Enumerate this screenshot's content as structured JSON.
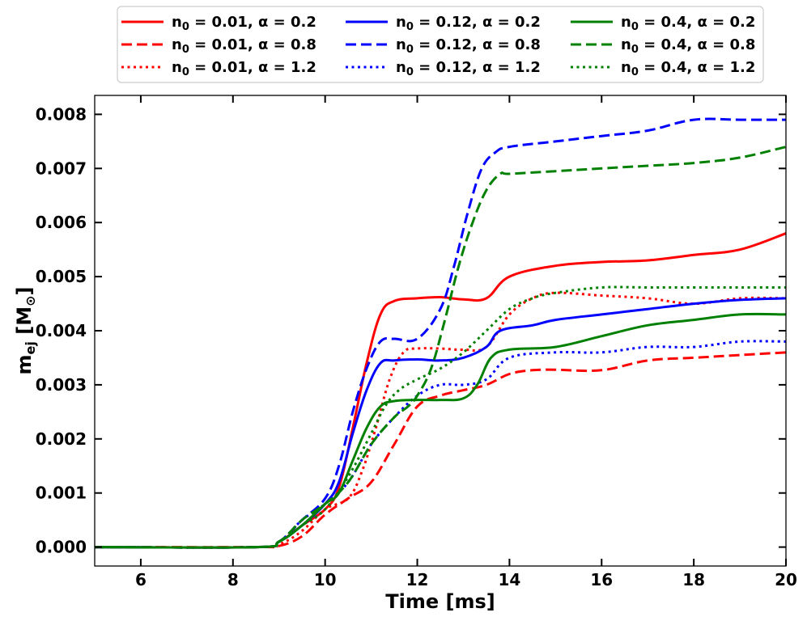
{
  "chart_data": {
    "type": "line",
    "title": "",
    "xlabel": "Time [ms]",
    "ylabel_main": "m",
    "ylabel_sub": "ej",
    "ylabel_unit": "[M",
    "ylabel_unit_sub": "⊙",
    "ylabel_close": "]",
    "xlim": [
      5,
      20
    ],
    "ylim": [
      -0.00035,
      0.00835
    ],
    "xticks": [
      6,
      8,
      10,
      12,
      14,
      16,
      18,
      20
    ],
    "yticks": [
      0,
      0.001,
      0.002,
      0.003,
      0.004,
      0.005,
      0.006,
      0.007,
      0.008
    ],
    "xtick_labels": [
      "6",
      "8",
      "10",
      "12",
      "14",
      "16",
      "18",
      "20"
    ],
    "ytick_labels": [
      "0.000",
      "0.001",
      "0.002",
      "0.003",
      "0.004",
      "0.005",
      "0.006",
      "0.007",
      "0.008"
    ],
    "legend_position": "top-center",
    "series": [
      {
        "name": "n0 = 0.01, α = 0.2",
        "n0": "0.01",
        "alpha": "0.2",
        "color": "#ff0000",
        "style": "solid",
        "x": [
          5,
          8.5,
          9.0,
          9.5,
          10.0,
          10.3,
          10.6,
          10.9,
          11.2,
          11.5,
          12.0,
          12.5,
          13.0,
          13.5,
          14.0,
          15.0,
          16.0,
          17.0,
          18.0,
          19.0,
          20.0
        ],
        "y": [
          0,
          0,
          0.0001,
          0.0004,
          0.0007,
          0.0011,
          0.0022,
          0.0034,
          0.0043,
          0.00455,
          0.0046,
          0.00462,
          0.00458,
          0.0046,
          0.005,
          0.0052,
          0.00527,
          0.0053,
          0.0054,
          0.0055,
          0.0058
        ]
      },
      {
        "name": "n0 = 0.01, α = 0.8",
        "n0": "0.01",
        "alpha": "0.8",
        "color": "#ff0000",
        "style": "dashed",
        "x": [
          5,
          8.5,
          9.0,
          9.5,
          10.0,
          10.5,
          11.0,
          11.5,
          12.0,
          12.5,
          13.0,
          13.5,
          14.0,
          14.5,
          15.0,
          16.0,
          17.0,
          18.0,
          19.0,
          20.0
        ],
        "y": [
          0,
          0,
          2e-05,
          0.0002,
          0.0006,
          0.0009,
          0.0012,
          0.0019,
          0.0026,
          0.0028,
          0.0029,
          0.003,
          0.0032,
          0.00327,
          0.00328,
          0.00327,
          0.00345,
          0.0035,
          0.00355,
          0.0036
        ]
      },
      {
        "name": "n0 = 0.01, α = 1.2",
        "n0": "0.01",
        "alpha": "1.2",
        "color": "#ff0000",
        "style": "dotted",
        "x": [
          5,
          8.5,
          9.0,
          9.5,
          10.0,
          10.5,
          10.8,
          11.1,
          11.4,
          11.7,
          12.0,
          12.5,
          13.0,
          13.5,
          14.0,
          14.5,
          15.0,
          16.0,
          17.0,
          18.0,
          19.0,
          20.0
        ],
        "y": [
          0,
          0,
          5e-05,
          0.0003,
          0.0007,
          0.0009,
          0.0014,
          0.0022,
          0.0031,
          0.0036,
          0.00367,
          0.00367,
          0.00365,
          0.0037,
          0.0043,
          0.0046,
          0.0047,
          0.00465,
          0.0046,
          0.0045,
          0.0046,
          0.0046
        ]
      },
      {
        "name": "n0 = 0.12, α = 0.2",
        "n0": "0.12",
        "alpha": "0.2",
        "color": "#0000ff",
        "style": "solid",
        "x": [
          5,
          8.5,
          9.0,
          9.5,
          10.0,
          10.3,
          10.6,
          10.9,
          11.2,
          11.5,
          12.0,
          12.5,
          13.0,
          13.5,
          13.8,
          14.5,
          15.0,
          16.0,
          17.0,
          18.0,
          19.0,
          20.0
        ],
        "y": [
          0,
          0,
          0.0001,
          0.0004,
          0.0008,
          0.0012,
          0.0021,
          0.0029,
          0.0034,
          0.00345,
          0.00347,
          0.00345,
          0.0035,
          0.0037,
          0.004,
          0.0041,
          0.0042,
          0.0043,
          0.0044,
          0.0045,
          0.00457,
          0.0046
        ]
      },
      {
        "name": "n0 = 0.12, α = 0.8",
        "n0": "0.12",
        "alpha": "0.8",
        "color": "#0000ff",
        "style": "dashed",
        "x": [
          5,
          8.5,
          9.0,
          9.5,
          10.0,
          10.3,
          10.6,
          10.9,
          11.2,
          11.5,
          12.0,
          12.5,
          12.8,
          13.1,
          13.4,
          13.7,
          14.0,
          15.0,
          16.0,
          17.0,
          18.0,
          19.0,
          20.0
        ],
        "y": [
          0,
          0,
          0.0001,
          0.0005,
          0.0009,
          0.0015,
          0.0025,
          0.0033,
          0.0038,
          0.00385,
          0.00385,
          0.0044,
          0.0052,
          0.0062,
          0.007,
          0.0073,
          0.0074,
          0.0075,
          0.0076,
          0.0077,
          0.0079,
          0.0079,
          0.0079
        ]
      },
      {
        "name": "n0 = 0.12, α = 1.2",
        "n0": "0.12",
        "alpha": "1.2",
        "color": "#0000ff",
        "style": "dotted",
        "x": [
          5,
          8.5,
          9.0,
          9.5,
          10.0,
          10.5,
          11.0,
          11.5,
          12.0,
          12.5,
          13.0,
          13.5,
          14.0,
          15.0,
          16.0,
          17.0,
          18.0,
          19.0,
          20.0
        ],
        "y": [
          0,
          0,
          0.0001,
          0.0005,
          0.0008,
          0.0012,
          0.0019,
          0.0024,
          0.0028,
          0.003,
          0.003,
          0.0031,
          0.0035,
          0.0036,
          0.0036,
          0.0037,
          0.0037,
          0.0038,
          0.0038
        ]
      },
      {
        "name": "n0 = 0.4, α = 0.2",
        "n0": "0.4",
        "alpha": "0.2",
        "color": "#008000",
        "style": "solid",
        "x": [
          5,
          8.5,
          9.0,
          9.5,
          10.0,
          10.3,
          10.6,
          10.9,
          11.2,
          11.5,
          12.0,
          12.5,
          13.0,
          13.3,
          13.6,
          14.0,
          15.0,
          16.0,
          17.0,
          18.0,
          19.0,
          20.0
        ],
        "y": [
          0,
          0,
          0.0001,
          0.0004,
          0.0008,
          0.001,
          0.0016,
          0.0022,
          0.0026,
          0.0027,
          0.00272,
          0.00272,
          0.00275,
          0.003,
          0.0035,
          0.00365,
          0.0037,
          0.0039,
          0.0041,
          0.0042,
          0.0043,
          0.0043
        ]
      },
      {
        "name": "n0 = 0.4, α = 0.8",
        "n0": "0.4",
        "alpha": "0.8",
        "color": "#008000",
        "style": "dashed",
        "x": [
          5,
          8.5,
          9.0,
          9.5,
          10.0,
          10.5,
          11.0,
          11.5,
          11.8,
          12.0,
          12.3,
          12.6,
          12.9,
          13.2,
          13.5,
          13.8,
          14.0,
          15.0,
          16.0,
          17.0,
          18.0,
          19.0,
          20.0
        ],
        "y": [
          0,
          0,
          0.0001,
          0.0005,
          0.0008,
          0.0012,
          0.0019,
          0.0024,
          0.0026,
          0.0028,
          0.0033,
          0.0042,
          0.0052,
          0.006,
          0.0066,
          0.0069,
          0.0069,
          0.00695,
          0.007,
          0.00705,
          0.0071,
          0.0072,
          0.0074
        ]
      },
      {
        "name": "n0 = 0.4, α = 1.2",
        "n0": "0.4",
        "alpha": "1.2",
        "color": "#008000",
        "style": "dotted",
        "x": [
          5,
          8.5,
          9.0,
          9.5,
          10.0,
          10.5,
          11.0,
          11.3,
          11.6,
          12.0,
          12.5,
          13.0,
          13.5,
          14.0,
          14.5,
          15.0,
          16.0,
          17.0,
          18.0,
          19.0,
          20.0
        ],
        "y": [
          0,
          0,
          0.0001,
          0.0004,
          0.0007,
          0.0013,
          0.0021,
          0.0026,
          0.0029,
          0.0031,
          0.0033,
          0.0036,
          0.004,
          0.0044,
          0.0046,
          0.0047,
          0.0048,
          0.0048,
          0.0048,
          0.0048,
          0.0048
        ]
      }
    ]
  }
}
